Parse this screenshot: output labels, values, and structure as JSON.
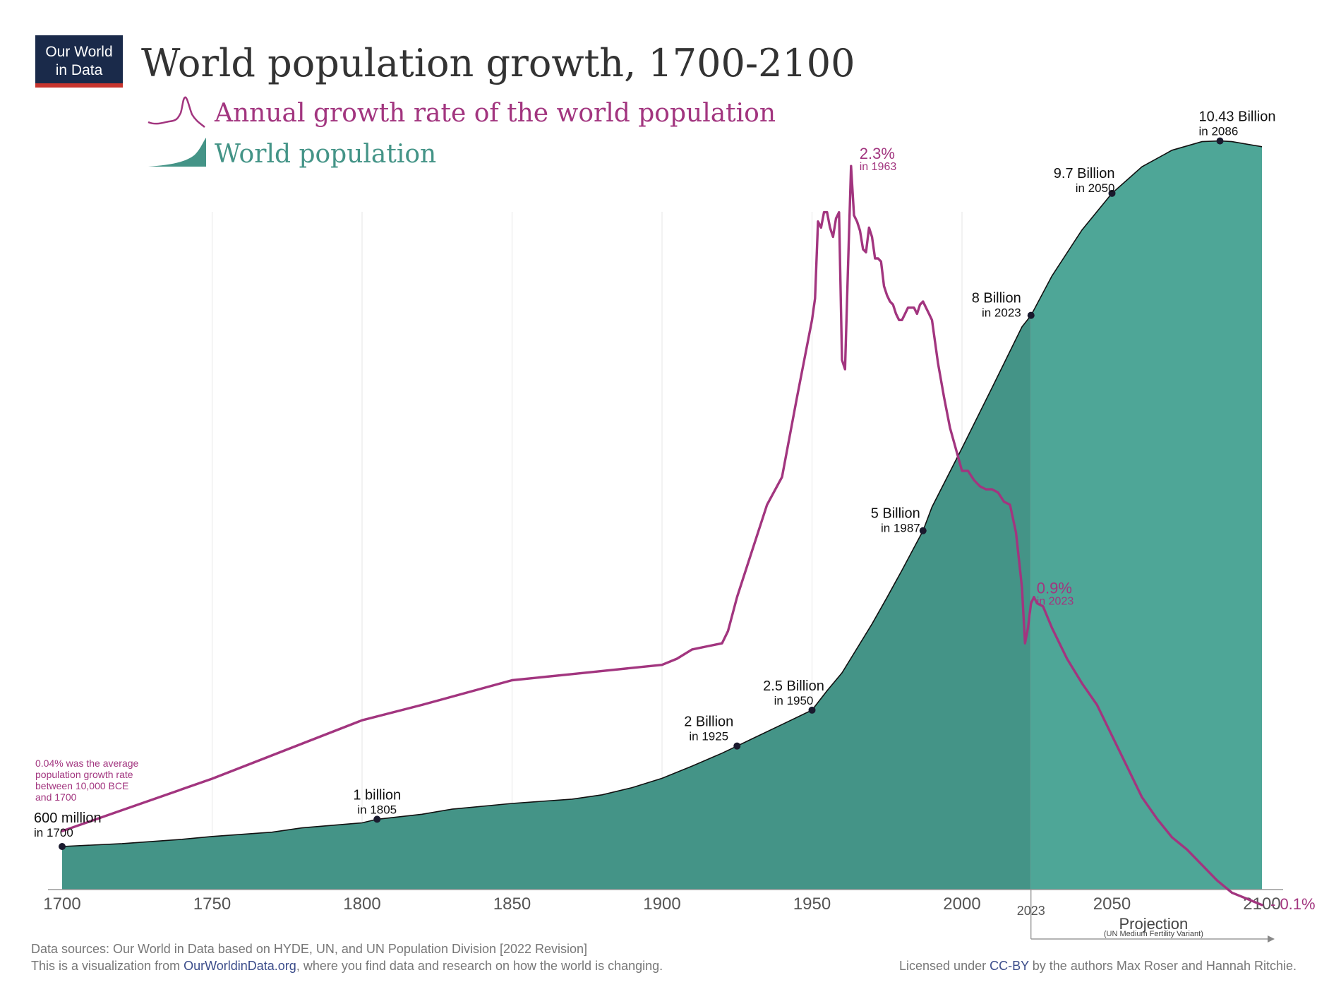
{
  "logo": {
    "line1": "Our World",
    "line2": "in Data"
  },
  "title": "World population growth, 1700-2100",
  "legend": {
    "growth": "Annual growth rate of the world population",
    "population": "World population"
  },
  "colors": {
    "growth": "#a2357f",
    "area_hist": "#449487",
    "area_proj": "#4ea697",
    "logo_bg": "#1a2a4a",
    "logo_bar": "#c8352e",
    "grid": "#e6e6e6",
    "axis_text": "#555555",
    "footer_text": "#777777",
    "link": "#3b4c8a"
  },
  "x_axis": {
    "ticks": [
      "1700",
      "1750",
      "1800",
      "1850",
      "1900",
      "1950",
      "2000",
      "2050",
      "2100"
    ],
    "marker": "2023",
    "projection_label": "Projection",
    "projection_sub": "(UN Medium Fertility Variant)"
  },
  "chart_data": {
    "type": "area",
    "xlim": [
      1700,
      2100
    ],
    "series": [
      {
        "name": "World population",
        "unit": "billion",
        "ylim": [
          0,
          12
        ],
        "x": [
          1700,
          1720,
          1740,
          1750,
          1770,
          1780,
          1800,
          1805,
          1820,
          1830,
          1850,
          1870,
          1880,
          1890,
          1900,
          1910,
          1920,
          1925,
          1930,
          1940,
          1950,
          1955,
          1960,
          1970,
          1975,
          1980,
          1987,
          1990,
          2000,
          2010,
          2020,
          2023,
          2030,
          2040,
          2050,
          2060,
          2070,
          2080,
          2086,
          2090,
          2100
        ],
        "y": [
          0.6,
          0.64,
          0.7,
          0.74,
          0.8,
          0.86,
          0.93,
          0.98,
          1.05,
          1.12,
          1.2,
          1.26,
          1.32,
          1.42,
          1.55,
          1.72,
          1.9,
          2.0,
          2.1,
          2.3,
          2.5,
          2.77,
          3.02,
          3.7,
          4.07,
          4.45,
          5.0,
          5.33,
          6.15,
          6.99,
          7.84,
          8.0,
          8.55,
          9.19,
          9.7,
          10.07,
          10.3,
          10.42,
          10.43,
          10.42,
          10.35
        ],
        "labels": [
          {
            "year": 1700,
            "value": "600 million",
            "sub": "in 1700"
          },
          {
            "year": 1805,
            "value": "1 billion",
            "sub": "in 1805"
          },
          {
            "year": 1925,
            "value": "2 Billion",
            "sub": "in 1925"
          },
          {
            "year": 1950,
            "value": "2.5 Billion",
            "sub": "in 1950"
          },
          {
            "year": 1987,
            "value": "5 Billion",
            "sub": "in 1987"
          },
          {
            "year": 2023,
            "value": "8 Billion",
            "sub": "in 2023"
          },
          {
            "year": 2050,
            "value": "9.7 Billion",
            "sub": "in 2050"
          },
          {
            "year": 2086,
            "value": "10.43 Billion",
            "sub": "in 2086"
          }
        ]
      },
      {
        "name": "Annual growth rate of the world population",
        "unit": "percent",
        "ylim": [
          -0.16,
          2.5
        ],
        "x": [
          1700,
          1750,
          1800,
          1820,
          1850,
          1870,
          1880,
          1900,
          1905,
          1910,
          1915,
          1920,
          1922,
          1925,
          1930,
          1935,
          1940,
          1945,
          1950,
          1951,
          1952,
          1953,
          1954,
          1955,
          1956,
          1957,
          1958,
          1959,
          1960,
          1961,
          1962,
          1963,
          1964,
          1965,
          1966,
          1967,
          1968,
          1969,
          1970,
          1971,
          1972,
          1973,
          1974,
          1975,
          1976,
          1977,
          1978,
          1979,
          1980,
          1981,
          1982,
          1983,
          1984,
          1985,
          1986,
          1987,
          1988,
          1989,
          1990,
          1992,
          1994,
          1996,
          1998,
          2000,
          2002,
          2004,
          2006,
          2008,
          2010,
          2012,
          2014,
          2016,
          2018,
          2019,
          2020,
          2021,
          2022,
          2023,
          2024,
          2025,
          2027,
          2030,
          2035,
          2040,
          2045,
          2050,
          2055,
          2060,
          2065,
          2070,
          2075,
          2080,
          2085,
          2090,
          2095,
          2100
        ],
        "y": [
          0.14,
          0.31,
          0.5,
          0.55,
          0.63,
          0.65,
          0.66,
          0.68,
          0.7,
          0.73,
          0.74,
          0.75,
          0.79,
          0.9,
          1.05,
          1.2,
          1.29,
          1.55,
          1.8,
          1.87,
          2.12,
          2.1,
          2.15,
          2.15,
          2.1,
          2.07,
          2.13,
          2.15,
          1.67,
          1.64,
          1.97,
          2.3,
          2.14,
          2.12,
          2.09,
          2.03,
          2.02,
          2.1,
          2.07,
          2.0,
          2.0,
          1.99,
          1.91,
          1.88,
          1.86,
          1.85,
          1.82,
          1.8,
          1.8,
          1.82,
          1.84,
          1.84,
          1.84,
          1.82,
          1.85,
          1.86,
          1.84,
          1.82,
          1.8,
          1.66,
          1.55,
          1.45,
          1.38,
          1.31,
          1.31,
          1.28,
          1.26,
          1.25,
          1.25,
          1.24,
          1.21,
          1.2,
          1.11,
          1.02,
          0.93,
          0.75,
          0.8,
          0.88,
          0.9,
          0.88,
          0.87,
          0.8,
          0.7,
          0.62,
          0.55,
          0.45,
          0.35,
          0.25,
          0.18,
          0.12,
          0.08,
          0.03,
          -0.02,
          -0.06,
          -0.08,
          -0.1
        ],
        "labels": [
          {
            "year": 1963,
            "value": "2.3%",
            "sub": "in 1963"
          },
          {
            "year": 2023,
            "value": "0.9%",
            "sub": "in 2023"
          },
          {
            "year": 2100,
            "value": "- 0.1%",
            "sub": ""
          }
        ],
        "note": [
          "0.04% was the average",
          "population growth rate",
          "between 10,000 BCE",
          "and 1700"
        ]
      }
    ]
  },
  "footer": {
    "sources": "Data sources: Our World in Data based on HYDE, UN, and UN Population Division [2022 Revision]",
    "vis_prefix": "This is a visualization from ",
    "vis_link": "OurWorldinData.org",
    "vis_suffix": ", where you find data and research on how the world is changing.",
    "license_prefix": "Licensed under ",
    "license_link": "CC-BY",
    "license_suffix": " by the authors Max Roser and Hannah Ritchie."
  }
}
